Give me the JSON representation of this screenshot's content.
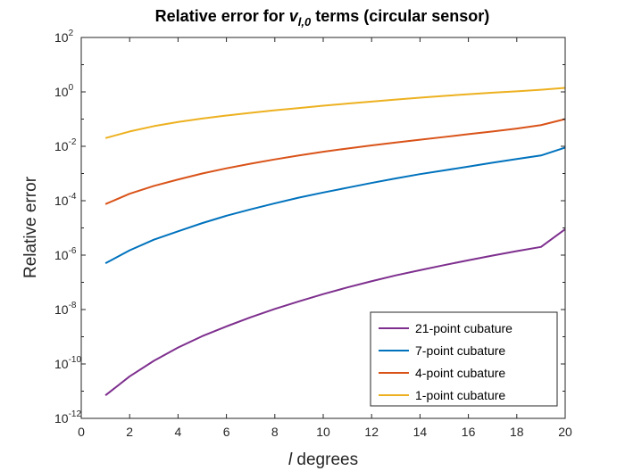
{
  "chart_data": {
    "type": "line",
    "title": {
      "prefix": "Relative error for ",
      "symbol": "v",
      "subscript": "l,0",
      "suffix": " terms (circular sensor)"
    },
    "xlabel": {
      "symbol": "l",
      "text": " degrees"
    },
    "ylabel": "Relative error",
    "xlim": [
      0,
      20
    ],
    "ylim": [
      1e-12,
      100
    ],
    "yscale": "log",
    "x_ticks": [
      0,
      2,
      4,
      6,
      8,
      10,
      12,
      14,
      16,
      18,
      20
    ],
    "y_ticks": [
      {
        "exp": -12,
        "base": "10",
        "power": "-12"
      },
      {
        "exp": -10,
        "base": "10",
        "power": "-10"
      },
      {
        "exp": -8,
        "base": "10",
        "power": "-8"
      },
      {
        "exp": -6,
        "base": "10",
        "power": "-6"
      },
      {
        "exp": -4,
        "base": "10",
        "power": "-4"
      },
      {
        "exp": -2,
        "base": "10",
        "power": "-2"
      },
      {
        "exp": 0,
        "base": "10",
        "power": "0"
      },
      {
        "exp": 2,
        "base": "10",
        "power": "2"
      }
    ],
    "grid": false,
    "legend_position": "bottom-right",
    "series": [
      {
        "name": "21-point cubature",
        "color": "#7E2F8E",
        "x": [
          1,
          2,
          3,
          4,
          5,
          6,
          7,
          8,
          9,
          10,
          11,
          12,
          13,
          14,
          15,
          16,
          17,
          18,
          19,
          20
        ],
        "y": [
          7e-12,
          3.5e-11,
          1.3e-10,
          4e-10,
          1.05e-09,
          2.4e-09,
          5.2e-09,
          1.05e-08,
          2e-08,
          3.7e-08,
          6.5e-08,
          1.1e-07,
          1.8e-07,
          2.8e-07,
          4.3e-07,
          6.5e-07,
          9.6e-07,
          1.4e-06,
          2e-06,
          9e-06
        ]
      },
      {
        "name": "7-point cubature",
        "color": "#0072BD",
        "x": [
          1,
          2,
          3,
          4,
          5,
          6,
          7,
          8,
          9,
          10,
          11,
          12,
          13,
          14,
          15,
          16,
          17,
          18,
          19,
          20
        ],
        "y": [
          5e-07,
          1.5e-06,
          3.7e-06,
          7.5e-06,
          1.5e-05,
          2.8e-05,
          4.8e-05,
          8e-05,
          0.00013,
          0.0002,
          0.0003,
          0.00045,
          0.00066,
          0.00095,
          0.0013,
          0.0018,
          0.0025,
          0.0034,
          0.0046,
          0.009
        ]
      },
      {
        "name": "4-point cubature",
        "color": "#D95319",
        "x": [
          1,
          2,
          3,
          4,
          5,
          6,
          7,
          8,
          9,
          10,
          11,
          12,
          13,
          14,
          15,
          16,
          17,
          18,
          19,
          20
        ],
        "y": [
          7.5e-05,
          0.00018,
          0.00035,
          0.0006,
          0.001,
          0.00155,
          0.0023,
          0.0033,
          0.0046,
          0.0063,
          0.0083,
          0.0108,
          0.0138,
          0.0175,
          0.022,
          0.028,
          0.035,
          0.045,
          0.06,
          0.1
        ]
      },
      {
        "name": "1-point cubature",
        "color": "#EDB120",
        "x": [
          1,
          2,
          3,
          4,
          5,
          6,
          7,
          8,
          9,
          10,
          11,
          12,
          13,
          14,
          15,
          16,
          17,
          18,
          19,
          20
        ],
        "y": [
          0.02,
          0.035,
          0.055,
          0.078,
          0.105,
          0.135,
          0.17,
          0.21,
          0.255,
          0.31,
          0.37,
          0.44,
          0.52,
          0.61,
          0.71,
          0.82,
          0.94,
          1.05,
          1.2,
          1.4
        ]
      }
    ]
  }
}
